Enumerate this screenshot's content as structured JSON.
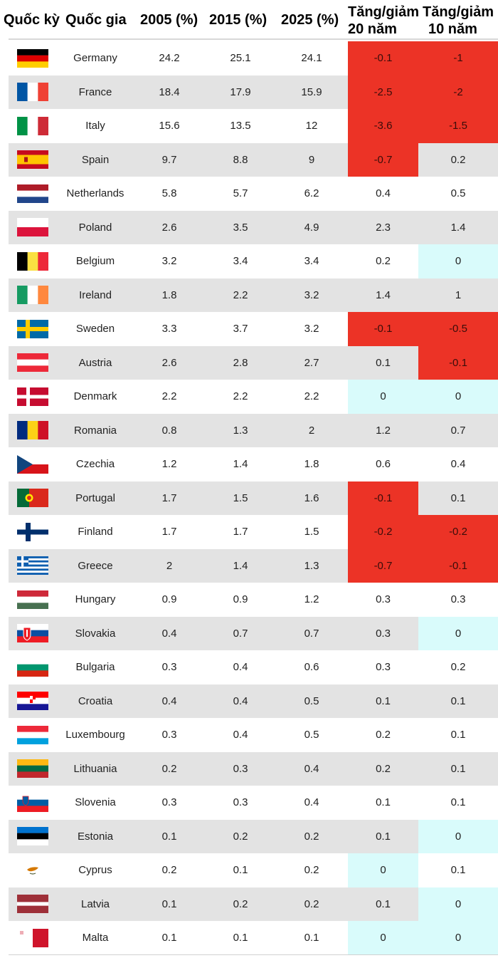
{
  "headers": {
    "flag": "Quốc kỳ",
    "country": "Quốc gia",
    "y2005": "2005 (%)",
    "y2015": "2015 (%)",
    "y2025": "2025 (%)",
    "change20_l1": "Tăng/giảm",
    "change20_l2": "20 năm",
    "change10_l1": "Tăng/giảm",
    "change10_l2": "10 năm"
  },
  "colors": {
    "decrease": "#ec3326",
    "unchanged": "#d9fbfb",
    "stripe": "#e3e3e3"
  },
  "rows": [
    {
      "flag": "germany-flag",
      "country": "Germany",
      "v2005": "24.2",
      "v2015": "25.1",
      "v2025": "24.1",
      "d20": "-0.1",
      "d10": "-1"
    },
    {
      "flag": "france-flag",
      "country": "France",
      "v2005": "18.4",
      "v2015": "17.9",
      "v2025": "15.9",
      "d20": "-2.5",
      "d10": "-2"
    },
    {
      "flag": "italy-flag",
      "country": "Italy",
      "v2005": "15.6",
      "v2015": "13.5",
      "v2025": "12",
      "d20": "-3.6",
      "d10": "-1.5"
    },
    {
      "flag": "spain-flag",
      "country": "Spain",
      "v2005": "9.7",
      "v2015": "8.8",
      "v2025": "9",
      "d20": "-0.7",
      "d10": "0.2"
    },
    {
      "flag": "netherlands-flag",
      "country": "Netherlands",
      "v2005": "5.8",
      "v2015": "5.7",
      "v2025": "6.2",
      "d20": "0.4",
      "d10": "0.5"
    },
    {
      "flag": "poland-flag",
      "country": "Poland",
      "v2005": "2.6",
      "v2015": "3.5",
      "v2025": "4.9",
      "d20": "2.3",
      "d10": "1.4"
    },
    {
      "flag": "belgium-flag",
      "country": "Belgium",
      "v2005": "3.2",
      "v2015": "3.4",
      "v2025": "3.4",
      "d20": "0.2",
      "d10": "0"
    },
    {
      "flag": "ireland-flag",
      "country": "Ireland",
      "v2005": "1.8",
      "v2015": "2.2",
      "v2025": "3.2",
      "d20": "1.4",
      "d10": "1"
    },
    {
      "flag": "sweden-flag",
      "country": "Sweden",
      "v2005": "3.3",
      "v2015": "3.7",
      "v2025": "3.2",
      "d20": "-0.1",
      "d10": "-0.5"
    },
    {
      "flag": "austria-flag",
      "country": "Austria",
      "v2005": "2.6",
      "v2015": "2.8",
      "v2025": "2.7",
      "d20": "0.1",
      "d10": "-0.1"
    },
    {
      "flag": "denmark-flag",
      "country": "Denmark",
      "v2005": "2.2",
      "v2015": "2.2",
      "v2025": "2.2",
      "d20": "0",
      "d10": "0"
    },
    {
      "flag": "romania-flag",
      "country": "Romania",
      "v2005": "0.8",
      "v2015": "1.3",
      "v2025": "2",
      "d20": "1.2",
      "d10": "0.7"
    },
    {
      "flag": "czechia-flag",
      "country": "Czechia",
      "v2005": "1.2",
      "v2015": "1.4",
      "v2025": "1.8",
      "d20": "0.6",
      "d10": "0.4"
    },
    {
      "flag": "portugal-flag",
      "country": "Portugal",
      "v2005": "1.7",
      "v2015": "1.5",
      "v2025": "1.6",
      "d20": "-0.1",
      "d10": "0.1"
    },
    {
      "flag": "finland-flag",
      "country": "Finland",
      "v2005": "1.7",
      "v2015": "1.7",
      "v2025": "1.5",
      "d20": "-0.2",
      "d10": "-0.2"
    },
    {
      "flag": "greece-flag",
      "country": "Greece",
      "v2005": "2",
      "v2015": "1.4",
      "v2025": "1.3",
      "d20": "-0.7",
      "d10": "-0.1"
    },
    {
      "flag": "hungary-flag",
      "country": "Hungary",
      "v2005": "0.9",
      "v2015": "0.9",
      "v2025": "1.2",
      "d20": "0.3",
      "d10": "0.3"
    },
    {
      "flag": "slovakia-flag",
      "country": "Slovakia",
      "v2005": "0.4",
      "v2015": "0.7",
      "v2025": "0.7",
      "d20": "0.3",
      "d10": "0"
    },
    {
      "flag": "bulgaria-flag",
      "country": "Bulgaria",
      "v2005": "0.3",
      "v2015": "0.4",
      "v2025": "0.6",
      "d20": "0.3",
      "d10": "0.2"
    },
    {
      "flag": "croatia-flag",
      "country": "Croatia",
      "v2005": "0.4",
      "v2015": "0.4",
      "v2025": "0.5",
      "d20": "0.1",
      "d10": "0.1"
    },
    {
      "flag": "luxembourg-flag",
      "country": "Luxembourg",
      "v2005": "0.3",
      "v2015": "0.4",
      "v2025": "0.5",
      "d20": "0.2",
      "d10": "0.1"
    },
    {
      "flag": "lithuania-flag",
      "country": "Lithuania",
      "v2005": "0.2",
      "v2015": "0.3",
      "v2025": "0.4",
      "d20": "0.2",
      "d10": "0.1"
    },
    {
      "flag": "slovenia-flag",
      "country": "Slovenia",
      "v2005": "0.3",
      "v2015": "0.3",
      "v2025": "0.4",
      "d20": "0.1",
      "d10": "0.1"
    },
    {
      "flag": "estonia-flag",
      "country": "Estonia",
      "v2005": "0.1",
      "v2015": "0.2",
      "v2025": "0.2",
      "d20": "0.1",
      "d10": "0"
    },
    {
      "flag": "cyprus-flag",
      "country": "Cyprus",
      "v2005": "0.2",
      "v2015": "0.1",
      "v2025": "0.2",
      "d20": "0",
      "d10": "0.1"
    },
    {
      "flag": "latvia-flag",
      "country": "Latvia",
      "v2005": "0.1",
      "v2015": "0.2",
      "v2025": "0.2",
      "d20": "0.1",
      "d10": "0"
    },
    {
      "flag": "malta-flag",
      "country": "Malta",
      "v2005": "0.1",
      "v2015": "0.1",
      "v2025": "0.1",
      "d20": "0",
      "d10": "0"
    }
  ]
}
